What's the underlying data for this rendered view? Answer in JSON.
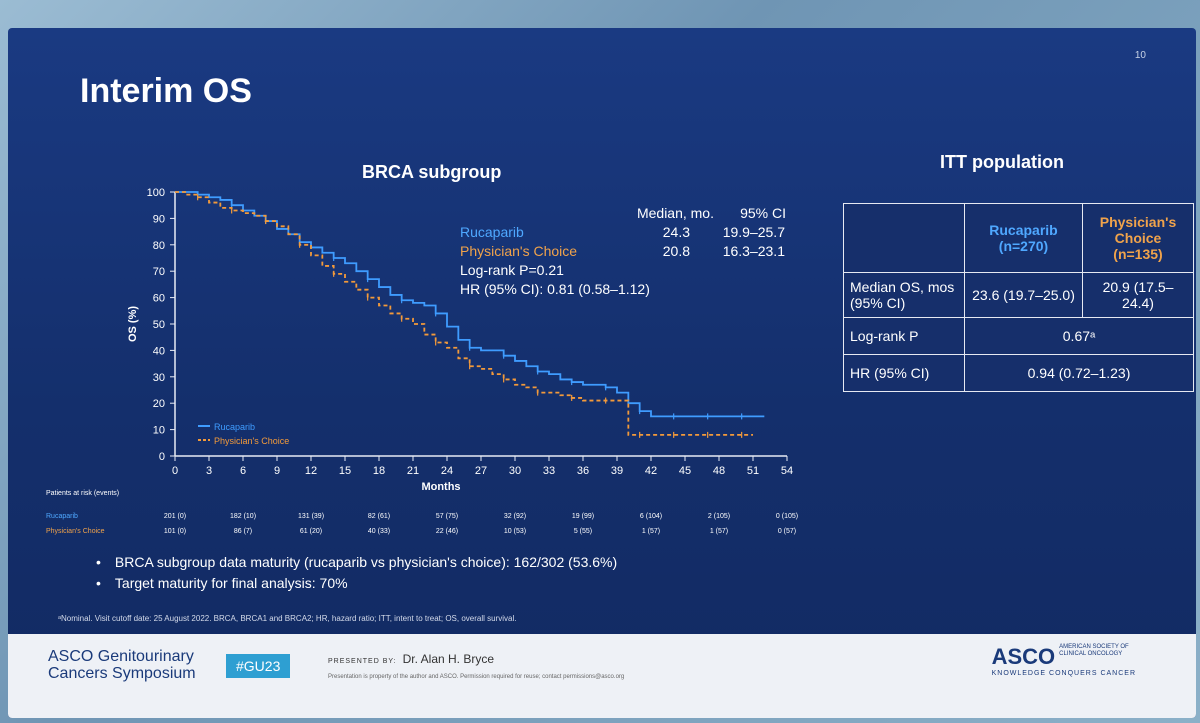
{
  "slide": {
    "title": "Interim OS",
    "number": "10",
    "chart_title": "BRCA subgroup",
    "itt_title": "ITT population"
  },
  "legend_stats": {
    "header_median": "Median, mo.",
    "header_ci": "95% CI",
    "rows": [
      {
        "name": "Rucaparib",
        "median": "24.3",
        "ci": "19.9–25.7"
      },
      {
        "name": "Physician's Choice",
        "median": "20.8",
        "ci": "16.3–23.1"
      }
    ],
    "logrank": "Log-rank P=0.21",
    "hr": "HR (95% CI): 0.81 (0.58–1.12)"
  },
  "chart_data": {
    "type": "line",
    "ylabel": "OS (%)",
    "xlabel": "Months",
    "xlim": [
      0,
      54
    ],
    "ylim": [
      0,
      100
    ],
    "xticks": [
      0,
      3,
      6,
      9,
      12,
      15,
      18,
      21,
      24,
      27,
      30,
      33,
      36,
      39,
      42,
      45,
      48,
      51,
      54
    ],
    "yticks": [
      0,
      10,
      20,
      30,
      40,
      50,
      60,
      70,
      80,
      90,
      100
    ],
    "legend": "bottom-left",
    "series": [
      {
        "name": "Rucaparib",
        "color": "#3f9cff",
        "x": [
          0,
          1,
          2,
          3,
          4,
          5,
          6,
          7,
          8,
          9,
          10,
          11,
          12,
          13,
          14,
          15,
          16,
          17,
          18,
          19,
          20,
          21,
          22,
          23,
          24,
          25,
          26,
          27,
          28,
          29,
          30,
          31,
          32,
          33,
          34,
          35,
          36,
          37,
          38,
          39,
          40,
          41,
          42,
          43,
          44,
          45,
          46,
          47,
          48,
          49,
          50,
          51,
          52
        ],
        "y": [
          100,
          100,
          99,
          98,
          97,
          95,
          93,
          91,
          89,
          86,
          84,
          81,
          79,
          77,
          75,
          73,
          70,
          67,
          64,
          61,
          59,
          58,
          57,
          54,
          49,
          44,
          41,
          40,
          40,
          38,
          36,
          34,
          32,
          31,
          29,
          28,
          27,
          27,
          26,
          24,
          20,
          17,
          15,
          15,
          15,
          15,
          15,
          15,
          15,
          15,
          15,
          15,
          15
        ]
      },
      {
        "name": "Physician's Choice",
        "color": "#f39a3a",
        "x": [
          0,
          1,
          2,
          3,
          4,
          5,
          6,
          7,
          8,
          9,
          10,
          11,
          12,
          13,
          14,
          15,
          16,
          17,
          18,
          19,
          20,
          21,
          22,
          23,
          24,
          25,
          26,
          27,
          28,
          29,
          30,
          31,
          32,
          33,
          34,
          35,
          36,
          37,
          38,
          39,
          40,
          41,
          42,
          43,
          44,
          45,
          46,
          47,
          48,
          49,
          50,
          51
        ],
        "y": [
          100,
          99,
          98,
          96,
          94,
          93,
          92,
          91,
          89,
          87,
          84,
          80,
          76,
          72,
          69,
          66,
          63,
          60,
          57,
          54,
          52,
          50,
          46,
          43,
          41,
          37,
          34,
          33,
          31,
          29,
          27,
          26,
          24,
          24,
          23,
          22,
          21,
          21,
          21,
          21,
          8,
          8,
          8,
          8,
          8,
          8,
          8,
          8,
          8,
          8,
          8,
          8
        ]
      }
    ]
  },
  "risk_table": {
    "title": "Patients at risk (events)",
    "rows": [
      {
        "name": "Rucaparib",
        "values": [
          "201 (0)",
          "182 (10)",
          "131 (39)",
          "82 (61)",
          "57 (75)",
          "32 (92)",
          "19 (99)",
          "6 (104)",
          "2 (105)",
          "0 (105)"
        ]
      },
      {
        "name": "Physician's Choice",
        "values": [
          "101 (0)",
          "86 (7)",
          "61 (20)",
          "40 (33)",
          "22 (46)",
          "10 (53)",
          "5 (55)",
          "1 (57)",
          "1 (57)",
          "0 (57)"
        ]
      }
    ]
  },
  "itt_table": {
    "col1": "Rucaparib",
    "col1_n": "(n=270)",
    "col2": "Physician's Choice",
    "col2_n": "(n=135)",
    "rows": [
      {
        "label": "Median OS, mos (95% CI)",
        "v1": "23.6 (19.7–25.0)",
        "v2": "20.9 (17.5–24.4)"
      },
      {
        "label": "Log-rank P",
        "v": "0.67ᵃ"
      },
      {
        "label": "HR (95% CI)",
        "v": "0.94 (0.72–1.23)"
      }
    ]
  },
  "bullets": [
    "BRCA subgroup data maturity (rucaparib vs physician's choice): 162/302 (53.6%)",
    "Target maturity for final analysis: 70%"
  ],
  "footnote": "ᵃNominal. Visit cutoff date: 25 August 2022. BRCA, BRCA1 and BRCA2; HR, hazard ratio; ITT, intent to treat; OS, overall survival.",
  "footer": {
    "meeting_line1": "ASCO Genitourinary",
    "meeting_line2": "Cancers Symposium",
    "hashtag": "#GU23",
    "presented_by": "PRESENTED BY:",
    "presenter": "Dr. Alan H. Bryce",
    "property": "Presentation is property of the author and ASCO. Permission required for reuse; contact permissions@asco.org",
    "logo": "ASCO",
    "society": "AMERICAN SOCIETY OF CLINICAL ONCOLOGY",
    "tagline": "KNOWLEDGE CONQUERS CANCER"
  }
}
